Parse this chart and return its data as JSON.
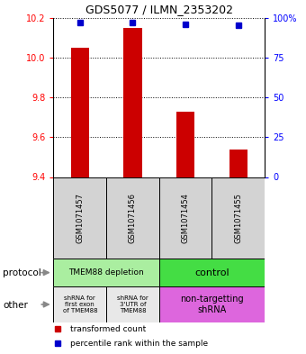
{
  "title": "GDS5077 / ILMN_2353202",
  "samples": [
    "GSM1071457",
    "GSM1071456",
    "GSM1071454",
    "GSM1071455"
  ],
  "red_values": [
    10.05,
    10.15,
    9.73,
    9.54
  ],
  "blue_values": [
    97,
    97,
    96,
    95
  ],
  "ylim_left": [
    9.4,
    10.2
  ],
  "ylim_right": [
    0,
    100
  ],
  "yticks_left": [
    9.4,
    9.6,
    9.8,
    10.0,
    10.2
  ],
  "yticks_right": [
    0,
    25,
    50,
    75,
    100
  ],
  "bar_color": "#cc0000",
  "dot_color": "#0000cc",
  "protocol_green_light": "#aaeea0",
  "protocol_green_bright": "#44dd44",
  "other_gray": "#e8e8e8",
  "other_magenta": "#dd66dd",
  "legend_red": "transformed count",
  "legend_blue": "percentile rank within the sample"
}
